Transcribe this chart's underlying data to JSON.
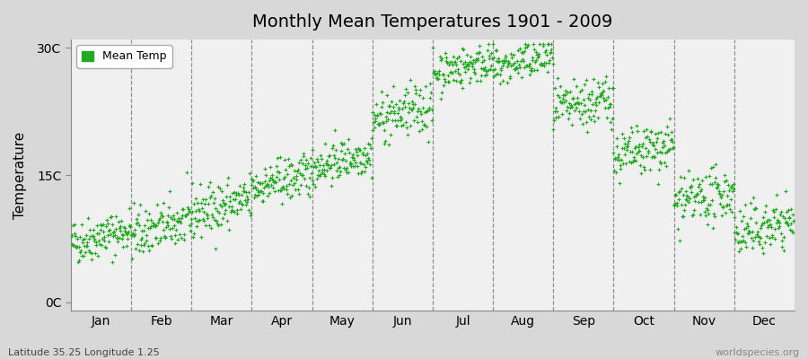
{
  "title": "Monthly Mean Temperatures 1901 - 2009",
  "ylabel": "Temperature",
  "ytick_labels": [
    "0C",
    "15C",
    "30C"
  ],
  "ytick_values": [
    0,
    15,
    30
  ],
  "ylim": [
    -1,
    31
  ],
  "fig_bg_color": "#d8d8d8",
  "plot_bg_color": "#f0f0f0",
  "dot_color": "#22aa22",
  "dot_size": 7,
  "months": [
    "Jan",
    "Feb",
    "Mar",
    "Apr",
    "May",
    "Jun",
    "Jul",
    "Aug",
    "Sep",
    "Oct",
    "Nov",
    "Dec"
  ],
  "subtitle": "Latitude 35.25 Longitude 1.25",
  "watermark": "worldspecies.org",
  "n_years": 109,
  "seed": 42,
  "mean_temps": [
    7.0,
    8.0,
    10.5,
    13.5,
    16.0,
    21.5,
    27.0,
    27.5,
    22.5,
    17.0,
    11.5,
    8.0
  ],
  "std_temps": [
    1.3,
    1.5,
    1.5,
    1.3,
    1.2,
    1.5,
    1.2,
    1.2,
    1.5,
    1.5,
    1.5,
    1.5
  ],
  "trend_per_year": [
    0.015,
    0.015,
    0.015,
    0.015,
    0.015,
    0.015,
    0.015,
    0.015,
    0.015,
    0.015,
    0.015,
    0.015
  ]
}
